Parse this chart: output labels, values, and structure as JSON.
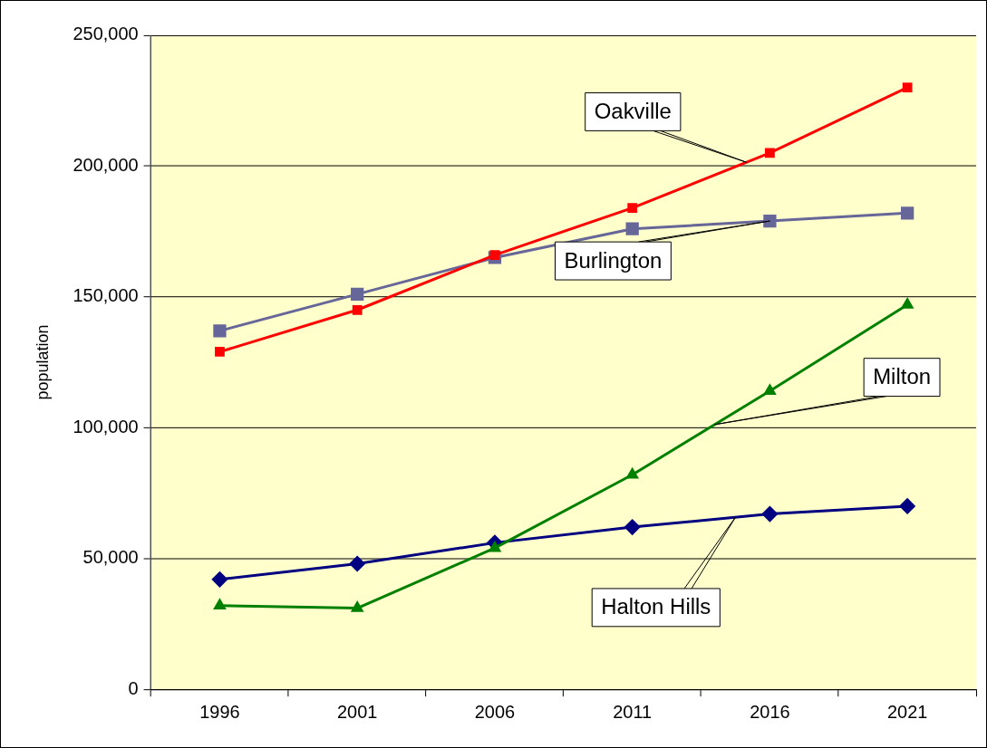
{
  "chart_data": {
    "type": "line",
    "ylabel": "population",
    "categories": [
      "1996",
      "2001",
      "2006",
      "2011",
      "2016",
      "2021"
    ],
    "series": [
      {
        "name": "Oakville",
        "color": "#ff0000",
        "marker": "square",
        "values": [
          129000,
          145000,
          166000,
          184000,
          205000,
          230000
        ]
      },
      {
        "name": "Burlington",
        "color": "#666699",
        "marker": "square",
        "values": [
          137000,
          151000,
          165000,
          176000,
          179000,
          182000
        ]
      },
      {
        "name": "Milton",
        "color": "#008000",
        "marker": "triangle",
        "values": [
          32000,
          31000,
          54000,
          82000,
          114000,
          147000
        ]
      },
      {
        "name": "Halton Hills",
        "color": "#000080",
        "marker": "diamond",
        "values": [
          42000,
          48000,
          56000,
          62000,
          67000,
          70000
        ]
      }
    ],
    "ylim": [
      0,
      250000
    ],
    "yticks": [
      0,
      {
        "value": 50000,
        "label": "50,000"
      },
      {
        "value": 100000,
        "label": "100,000"
      },
      {
        "value": 150000,
        "label": "150,000"
      },
      {
        "value": 200000,
        "label": "200,000"
      },
      {
        "value": 250000,
        "label": "250,000"
      }
    ],
    "grid": "y",
    "legend": false,
    "line_style": "solid"
  }
}
